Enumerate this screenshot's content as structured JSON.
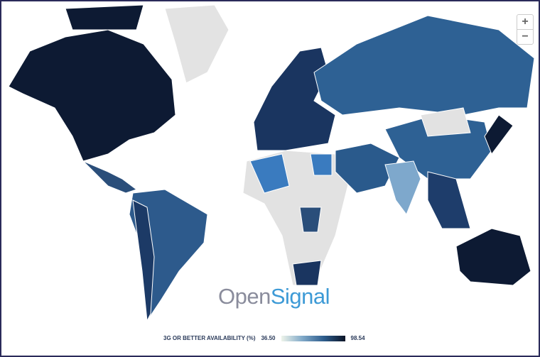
{
  "zoom": {
    "in": "+",
    "out": "−"
  },
  "logo": {
    "open": "Open",
    "signal": "Signal"
  },
  "legend": {
    "title": "3G OR BETTER AVAILABILITY (%)",
    "min": "36.50",
    "max": "98.54"
  }
}
